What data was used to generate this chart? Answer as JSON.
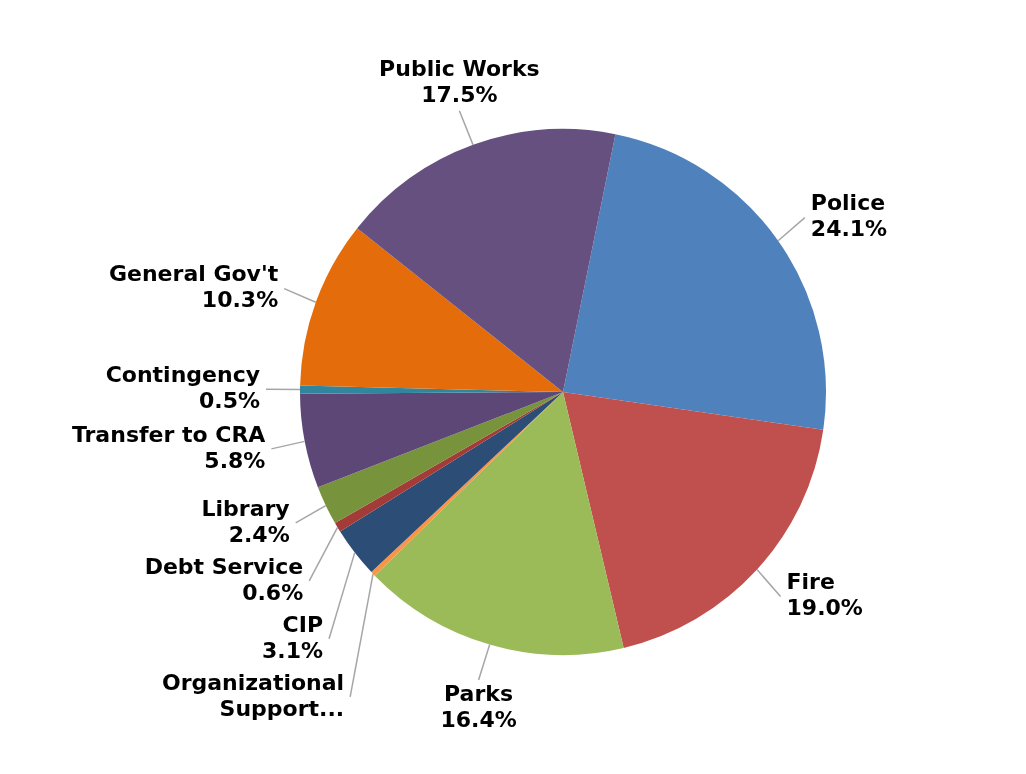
{
  "chart_data": {
    "type": "pie",
    "categories": [
      "Police",
      "Fire",
      "Parks",
      "Organizational Support...",
      "CIP",
      "Debt Service",
      "Library",
      "Transfer to CRA",
      "Contingency",
      "General Gov't",
      "Public Works"
    ],
    "values": [
      24.1,
      19.0,
      16.4,
      0.3,
      3.1,
      0.6,
      2.4,
      5.8,
      0.5,
      10.3,
      17.5
    ],
    "value_labels": [
      "24.1%",
      "19.0%",
      "16.4%",
      null,
      "3.1%",
      "0.6%",
      "2.4%",
      "5.8%",
      "0.5%",
      "10.3%",
      "17.5%"
    ],
    "colors": [
      "#4f81bd",
      "#c0504d",
      "#9bbb59",
      "#f79646",
      "#2c4d75",
      "#a33b38",
      "#77933c",
      "#5c4776",
      "#31859c",
      "#e46c0a",
      "#66507f"
    ]
  }
}
